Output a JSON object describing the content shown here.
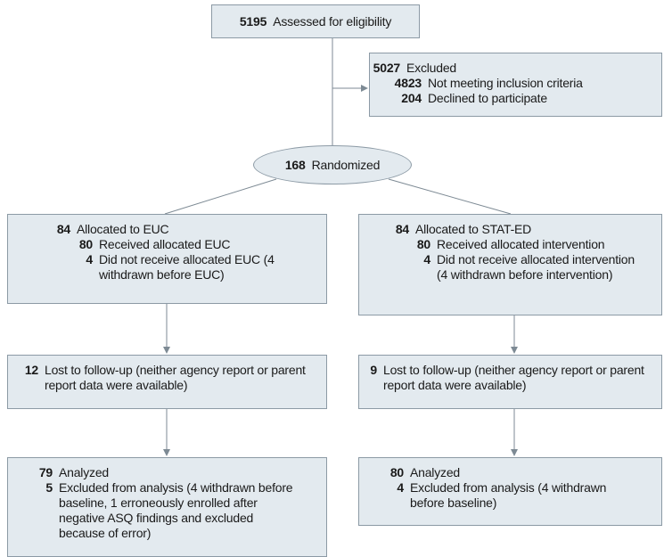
{
  "assessed": {
    "count": "5195",
    "label": "Assessed for eligibility"
  },
  "excluded": {
    "count": "5027",
    "label": "Excluded",
    "reasons": [
      {
        "count": "4823",
        "label": "Not meeting inclusion criteria"
      },
      {
        "count": "204",
        "label": "Declined to participate"
      }
    ]
  },
  "randomized": {
    "count": "168",
    "label": "Randomized"
  },
  "arms": [
    {
      "allocated": {
        "count": "84",
        "label": "Allocated to EUC"
      },
      "details": [
        {
          "count": "80",
          "label": "Received allocated EUC"
        },
        {
          "count": "4",
          "label": "Did not receive allocated EUC (4 withdrawn before EUC)"
        }
      ],
      "lost": {
        "count": "12",
        "label": "Lost to follow-up (neither agency report or parent report data were available)"
      },
      "analyzed": {
        "count": "79",
        "label": "Analyzed"
      },
      "analysis_excluded": {
        "count": "5",
        "label": "Excluded from analysis (4 withdrawn before baseline, 1 erroneously enrolled after negative ASQ findings and excluded because of error)"
      }
    },
    {
      "allocated": {
        "count": "84",
        "label": "Allocated to STAT-ED"
      },
      "details": [
        {
          "count": "80",
          "label": "Received allocated intervention"
        },
        {
          "count": "4",
          "label": "Did not receive allocated intervention (4 withdrawn before intervention)"
        }
      ],
      "lost": {
        "count": "9",
        "label": "Lost to follow-up (neither agency report or parent report data were available)"
      },
      "analyzed": {
        "count": "80",
        "label": "Analyzed"
      },
      "analysis_excluded": {
        "count": "4",
        "label": "Excluded from analysis (4 withdrawn before baseline)"
      }
    }
  ]
}
